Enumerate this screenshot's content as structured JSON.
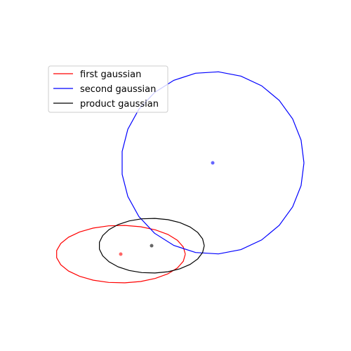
{
  "chart_data": {
    "type": "scatter",
    "title": "",
    "xlabel": "",
    "ylabel": "",
    "axes_visible": false,
    "grid": false,
    "legend_placement": "upper-left",
    "series": [
      {
        "name": "first gaussian",
        "kind": "ellipse",
        "color": "#ff0000",
        "center": [
          172,
          362
        ],
        "radii": [
          92,
          41
        ]
      },
      {
        "name": "second gaussian",
        "kind": "ellipse",
        "color": "#0000ff",
        "center": [
          303,
          232
        ],
        "radii": [
          130,
          130
        ]
      },
      {
        "name": "product gaussian",
        "kind": "ellipse",
        "color": "#000000",
        "center": [
          216,
          350
        ],
        "radii": [
          75,
          39
        ]
      }
    ],
    "legend": {
      "entries": [
        {
          "label": "first gaussian",
          "color": "#ff0000"
        },
        {
          "label": "second gaussian",
          "color": "#0000ff"
        },
        {
          "label": "product gaussian",
          "color": "#000000"
        }
      ]
    }
  }
}
